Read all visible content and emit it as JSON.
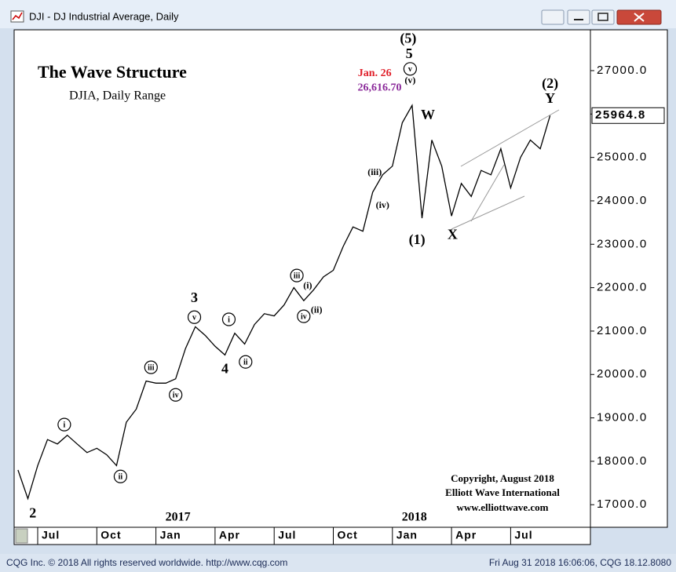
{
  "window_title": "DJI - DJ Industrial Average, Daily",
  "status_left": "CQG Inc. © 2018 All rights reserved worldwide. http://www.cqg.com",
  "status_right": "Fri Aug 31 2018 16:06:06, CQG 18.12.8080",
  "chart_data": {
    "type": "line",
    "title": "The Wave Structure",
    "subtitle": "DJIA, Daily Range",
    "copyright": [
      "Copyright, August 2018",
      "Elliott Wave International",
      "www.elliottwave.com"
    ],
    "color": "#000000",
    "categories": [
      null,
      null,
      "Jul",
      null,
      null,
      null,
      null,
      null,
      "Oct",
      null,
      null,
      null,
      null,
      null,
      "Jan",
      null,
      null,
      null,
      null,
      null,
      "Apr",
      null,
      null,
      null,
      null,
      null,
      "Jul",
      null,
      null,
      null,
      null,
      null,
      "Oct",
      null,
      null,
      null,
      null,
      null,
      "Jan",
      null,
      null,
      null,
      null,
      null,
      "Apr",
      null,
      null,
      null,
      null,
      null,
      "Jul",
      null,
      null,
      null,
      null
    ],
    "values": [
      17800,
      17140,
      17900,
      18500,
      18400,
      18600,
      18400,
      18200,
      18300,
      18150,
      17900,
      18900,
      19200,
      19850,
      19800,
      19800,
      19900,
      20600,
      21100,
      20900,
      20650,
      20450,
      20950,
      20700,
      21150,
      21400,
      21350,
      21600,
      22000,
      21700,
      21950,
      22250,
      22400,
      22950,
      23400,
      23300,
      24200,
      24600,
      24800,
      25800,
      26200,
      23600,
      25400,
      24800,
      23650,
      24400,
      24100,
      24700,
      24600,
      25200,
      24300,
      25000,
      25400,
      25200,
      25965
    ],
    "year_labels": [
      {
        "text": "2017",
        "x": 14
      },
      {
        "text": "2018",
        "x": 38
      }
    ],
    "ylim": [
      16480,
      27940
    ],
    "yticks": [
      {
        "value": 17000,
        "label": "17000.0"
      },
      {
        "value": 18000,
        "label": "18000.0"
      },
      {
        "value": 19000,
        "label": "19000.0"
      },
      {
        "value": 20000,
        "label": "20000.0"
      },
      {
        "value": 21000,
        "label": "21000.0"
      },
      {
        "value": 22000,
        "label": "22000.0"
      },
      {
        "value": 23000,
        "label": "23000.0"
      },
      {
        "value": 24000,
        "label": "24000.0"
      },
      {
        "value": 25000,
        "label": "25000.0"
      },
      {
        "value": 26000,
        "label": "26000.0"
      },
      {
        "value": 27000,
        "label": "27000.0"
      }
    ],
    "last_price": 25964.8,
    "grid": false,
    "annotations": [
      {
        "text": "2",
        "x": 1.5,
        "y": 16780,
        "style": "big"
      },
      {
        "text": "i",
        "x": 4.7,
        "y": 18845,
        "style": "circle"
      },
      {
        "text": "ii",
        "x": 10.4,
        "y": 17650,
        "style": "circle"
      },
      {
        "text": "iii",
        "x": 13.5,
        "y": 20165,
        "style": "circle"
      },
      {
        "text": "iv",
        "x": 16.0,
        "y": 19530,
        "style": "circle"
      },
      {
        "text": "3",
        "x": 17.9,
        "y": 21740,
        "style": "big"
      },
      {
        "text": "v",
        "x": 17.9,
        "y": 21320,
        "style": "circle"
      },
      {
        "text": "i",
        "x": 21.4,
        "y": 21270,
        "style": "circle"
      },
      {
        "text": "4",
        "x": 21.0,
        "y": 20110,
        "style": "big"
      },
      {
        "text": "ii",
        "x": 23.1,
        "y": 20290,
        "style": "circle"
      },
      {
        "text": "iii",
        "x": 28.3,
        "y": 22280,
        "style": "circle"
      },
      {
        "text": "(i)",
        "x": 29.4,
        "y": 22030,
        "style": "small"
      },
      {
        "text": "iv",
        "x": 29.0,
        "y": 21340,
        "style": "circle"
      },
      {
        "text": "(ii)",
        "x": 30.3,
        "y": 21470,
        "style": "small"
      },
      {
        "text": "(iii)",
        "x": 36.2,
        "y": 24650,
        "style": "small"
      },
      {
        "text": "(iv)",
        "x": 37.0,
        "y": 23890,
        "style": "small"
      },
      {
        "text": "(5)",
        "x": 39.6,
        "y": 27720,
        "style": "big"
      },
      {
        "text": "5",
        "x": 39.7,
        "y": 27360,
        "style": "big"
      },
      {
        "text": "v",
        "x": 39.8,
        "y": 27040,
        "style": "circle"
      },
      {
        "text": "(v)",
        "x": 39.8,
        "y": 26760,
        "style": "small"
      },
      {
        "text": "W",
        "x": 41.6,
        "y": 25950,
        "style": "big"
      },
      {
        "text": "(1)",
        "x": 40.5,
        "y": 23080,
        "style": "big"
      },
      {
        "text": "X",
        "x": 44.1,
        "y": 23200,
        "style": "big"
      },
      {
        "text": "(2)",
        "x": 54.0,
        "y": 26675,
        "style": "big"
      },
      {
        "text": "Y",
        "x": 54.0,
        "y": 26330,
        "style": "big"
      },
      {
        "text": "Jan. 26",
        "x": 36.2,
        "y": 26930,
        "style": "note",
        "color": "#e0202a"
      },
      {
        "text": "26,616.70",
        "x": 36.7,
        "y": 26600,
        "style": "note",
        "color": "#8b2a9a"
      }
    ]
  }
}
